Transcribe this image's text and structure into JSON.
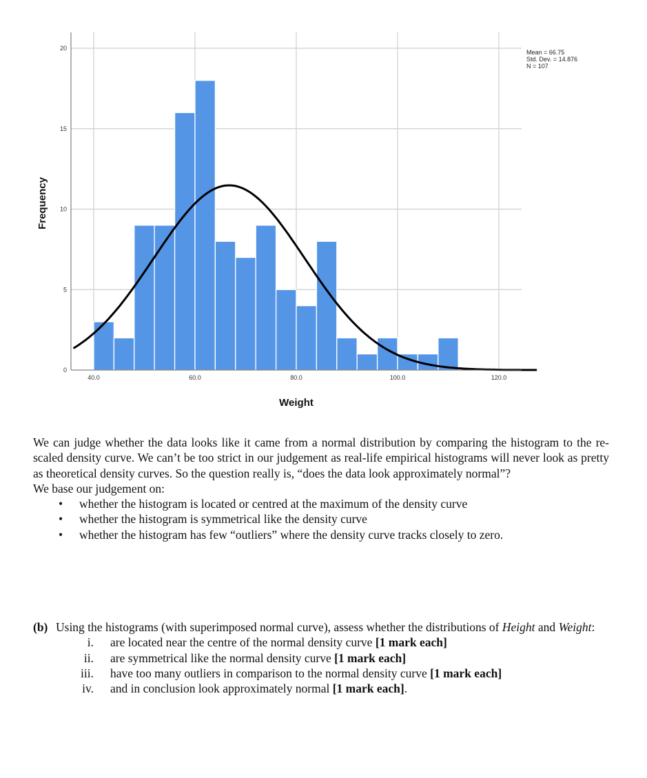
{
  "chart_data": {
    "type": "bar",
    "subtype": "histogram with normal curve",
    "xlabel": "Weight",
    "ylabel": "Frequency",
    "xlim": [
      36.0,
      127.5
    ],
    "ylim": [
      0,
      20.5
    ],
    "xticks": [
      40,
      60,
      80,
      100,
      120
    ],
    "xtick_labels": [
      "40.0",
      "60.0",
      "80.0",
      "100.0",
      "120.0"
    ],
    "yticks": [
      0,
      5,
      10,
      15,
      20
    ],
    "ytick_labels": [
      "0",
      "5",
      "10",
      "15",
      "20"
    ],
    "grid": "on",
    "bin_width": 4,
    "bin_starts": [
      40,
      44,
      48,
      52,
      56,
      60,
      64,
      68,
      72,
      76,
      80,
      84,
      88,
      92,
      96,
      100,
      104,
      108
    ],
    "values": [
      3,
      2,
      9,
      9,
      16,
      18,
      8,
      7,
      9,
      5,
      4,
      8,
      2,
      1,
      2,
      1,
      1,
      2
    ],
    "bar_color": "#5595e6",
    "curve": {
      "type": "normal",
      "mean": 66.75,
      "sd": 14.876,
      "n": 107,
      "color": "#000000"
    },
    "stats_box": [
      "Mean = 66.75",
      "Std. Dev. = 14.876",
      "N = 107"
    ]
  },
  "intro": {
    "paragraph1": "We can judge whether the data looks like it came from a normal distribution by comparing the histogram to the re-scaled density curve. We can’t be too strict in our judgement as real-life empirical histograms will never look as pretty as theoretical density curves. So the question really is, “does the data look approximately normal”?",
    "paragraph2": "We base our judgement on:",
    "bullets": [
      "whether the histogram is located or centred at the maximum of the density curve",
      "whether the histogram is symmetrical like the density curve",
      "whether the histogram has few “outliers” where the density curve tracks closely to zero."
    ]
  },
  "question_b": {
    "label": "(b)",
    "stem_1": "Using the histograms (with superimposed normal curve), assess whether the distributions of ",
    "var_height": "Height",
    "stem_and": " and ",
    "var_weight": "Weight",
    "stem_colon": ":",
    "items": [
      {
        "num": "i.",
        "text": "are located near the centre of the normal density curve ",
        "mark": "[1 mark each]",
        "tail": ""
      },
      {
        "num": "ii.",
        "text": "are symmetrical like the normal density curve ",
        "mark": "[1 mark each]",
        "tail": ""
      },
      {
        "num": "iii.",
        "text": "have too many outliers in comparison to the normal density curve ",
        "mark": "[1 mark each]",
        "tail": ""
      },
      {
        "num": "iv.",
        "text": "and in conclusion look approximately normal ",
        "mark": "[1 mark each]",
        "tail": "."
      }
    ]
  }
}
